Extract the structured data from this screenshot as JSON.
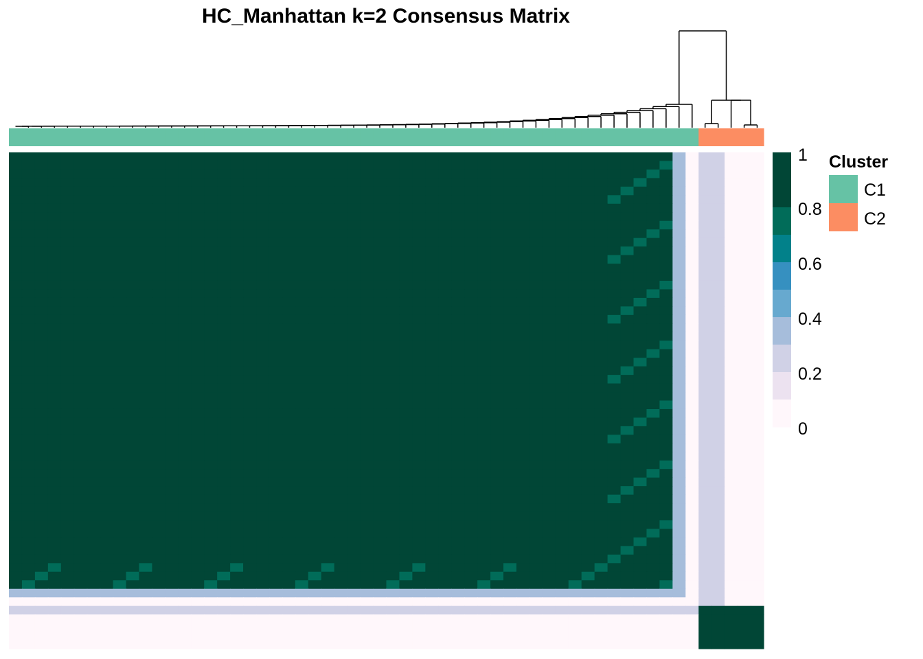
{
  "chart_data": {
    "type": "heatmap",
    "title": "HC_Manhattan k=2 Consensus Matrix",
    "xlabel": "",
    "ylabel": "",
    "n_samples": 58,
    "clusters": {
      "labels": [
        "C1",
        "C2"
      ],
      "sizes": [
        53,
        5
      ],
      "colors": {
        "C1": "#66c2a5",
        "C2": "#fc8d62"
      }
    },
    "within_C1_pattern": {
      "core_consensus": 1.0,
      "tail_consensus": 0.85,
      "low_rows_consensus": 0.3,
      "bottom_rows_consensus": 0.05
    },
    "between_cluster_consensus": 0.3,
    "within_C2_consensus": 0.95,
    "color_scale": {
      "title": "",
      "min": 0,
      "max": 1,
      "stops": [
        {
          "value": 0.0,
          "color": "#fff7fb"
        },
        {
          "value": 0.1,
          "color": "#ece2f0"
        },
        {
          "value": 0.2,
          "color": "#d0d1e6"
        },
        {
          "value": 0.3,
          "color": "#a6bddb"
        },
        {
          "value": 0.4,
          "color": "#67a9cf"
        },
        {
          "value": 0.5,
          "color": "#3690c0"
        },
        {
          "value": 0.6,
          "color": "#02818a"
        },
        {
          "value": 0.7,
          "color": "#016c59"
        },
        {
          "value": 0.8,
          "color": "#014636"
        }
      ],
      "tick_labels": [
        "1",
        "0.8",
        "0.6",
        "0.4",
        "0.2",
        "0"
      ]
    },
    "legend": {
      "title": "Cluster",
      "entries": [
        "C1",
        "C2"
      ],
      "placement": "right"
    },
    "dendrogram": "top"
  }
}
